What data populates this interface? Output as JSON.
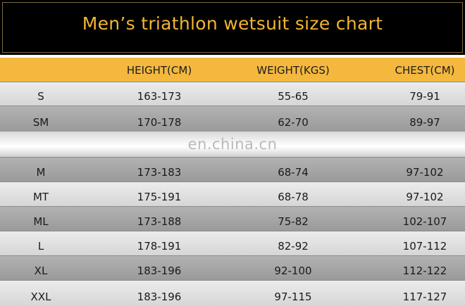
{
  "title": "Men’s triathlon wetsuit size chart",
  "watermark": "en.china.cn",
  "columns": [
    "",
    "HEIGHT(CM)",
    "WEIGHT(KGS)",
    "CHEST(CM)"
  ],
  "rows": [
    {
      "size": "S",
      "height": "163-173",
      "weight": "55-65",
      "chest": "79-91"
    },
    {
      "size": "SM",
      "height": "170-178",
      "weight": "62-70",
      "chest": "89-97"
    },
    {
      "size": "M",
      "height": "173-183",
      "weight": "68-74",
      "chest": "97-102"
    },
    {
      "size": "MT",
      "height": "175-191",
      "weight": "68-78",
      "chest": "97-102"
    },
    {
      "size": "ML",
      "height": "173-188",
      "weight": "75-82",
      "chest": "102-107"
    },
    {
      "size": "L",
      "height": "178-191",
      "weight": "82-92",
      "chest": "107-112"
    },
    {
      "size": "XL",
      "height": "183-196",
      "weight": "92-100",
      "chest": "112-122"
    },
    {
      "size": "XXL",
      "height": "183-196",
      "weight": "97-115",
      "chest": "117-127"
    }
  ],
  "colors": {
    "title_bg": "#000000",
    "title_text": "#f2b532",
    "header_bg": "#f4b83e",
    "row_light": "#e2e2e2",
    "row_dark": "#a8a8a8"
  }
}
